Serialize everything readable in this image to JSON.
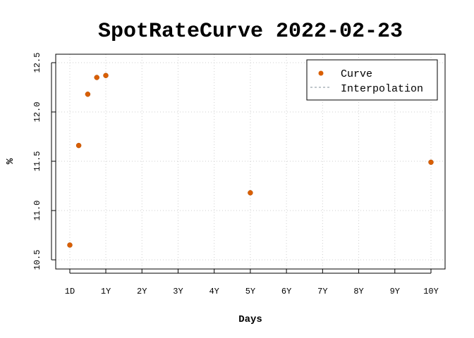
{
  "chart_data": {
    "type": "scatter",
    "title": "SpotRateCurve 2022-02-23",
    "xlabel": "Days",
    "ylabel": "%",
    "x_ticks": [
      {
        "value": 1,
        "label": "1D"
      },
      {
        "value": 252,
        "label": "1Y"
      },
      {
        "value": 504,
        "label": "2Y"
      },
      {
        "value": 756,
        "label": "3Y"
      },
      {
        "value": 1008,
        "label": "4Y"
      },
      {
        "value": 1260,
        "label": "5Y"
      },
      {
        "value": 1512,
        "label": "6Y"
      },
      {
        "value": 1764,
        "label": "7Y"
      },
      {
        "value": 2016,
        "label": "8Y"
      },
      {
        "value": 2268,
        "label": "9Y"
      },
      {
        "value": 2520,
        "label": "10Y"
      }
    ],
    "y_ticks": [
      "10.5",
      "11.0",
      "11.5",
      "12.0",
      "12.5"
    ],
    "xlim": [
      1,
      2520
    ],
    "ylim": [
      10.5,
      12.5
    ],
    "grid": true,
    "legend_position": "top-right",
    "series": [
      {
        "name": "Curve",
        "kind": "points",
        "color": "#d95f02",
        "x": [
          1,
          63,
          126,
          189,
          252,
          1260,
          2520
        ],
        "y": [
          10.65,
          11.66,
          12.18,
          12.35,
          12.37,
          11.18,
          11.49
        ]
      },
      {
        "name": "Interpolation",
        "kind": "dashed-line",
        "color": "#7f8c97",
        "x": [],
        "y": []
      }
    ]
  }
}
